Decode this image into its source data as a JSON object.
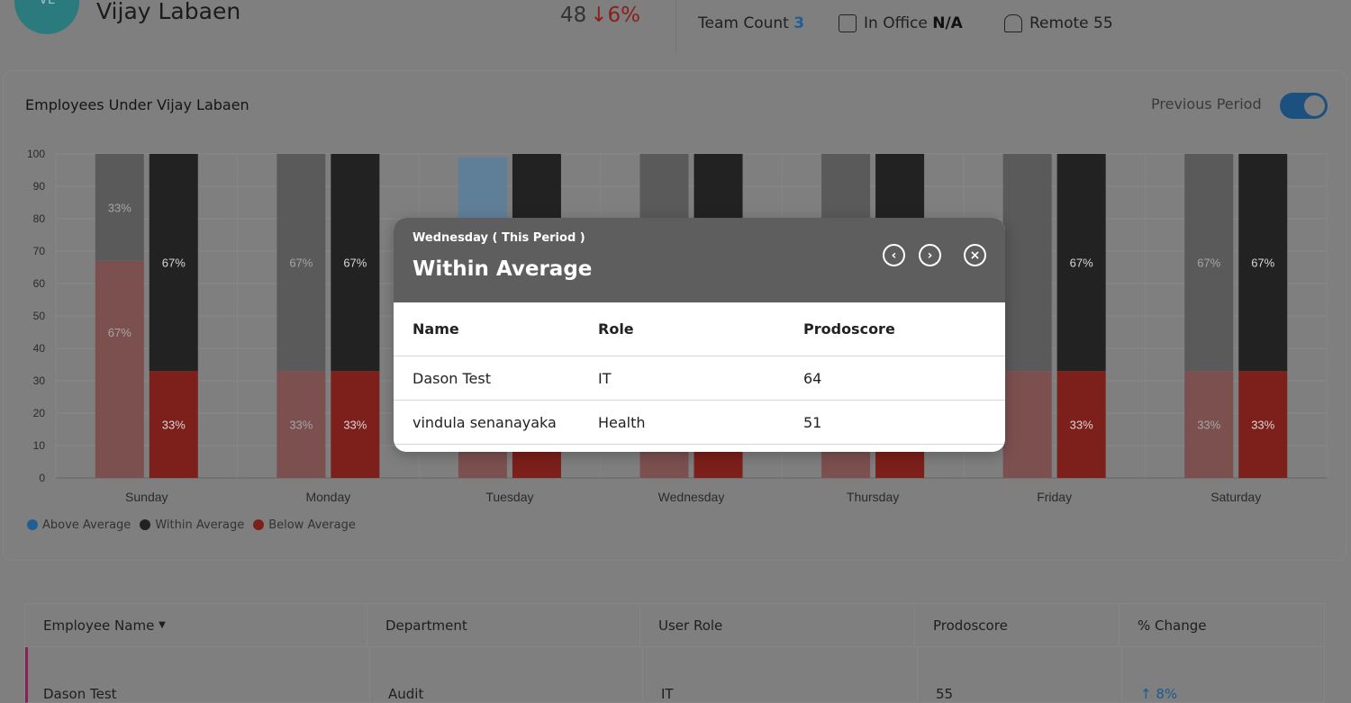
{
  "header": {
    "avatar_initials": "VL",
    "name": "Vijay Labaen",
    "score": "48",
    "score_change": "↓6%",
    "team_count_label": "Team Count",
    "team_count": "3",
    "in_office_label": "In Office",
    "in_office": "N/A",
    "remote_label": "Remote",
    "remote": "55"
  },
  "chart_card": {
    "title": "Employees Under Vijay Labaen",
    "toggle_label": "Previous Period",
    "toggle_on": true
  },
  "chart_data": {
    "type": "bar",
    "stacked": true,
    "categories": [
      "Sunday",
      "Monday",
      "Tuesday",
      "Wednesday",
      "Thursday",
      "Friday",
      "Saturday"
    ],
    "ylim": [
      0,
      100
    ],
    "yticks": [
      0,
      10,
      20,
      30,
      40,
      50,
      60,
      70,
      80,
      90,
      100
    ],
    "grid": true,
    "legend_position": "bottom-left",
    "colors": {
      "above": "#1f5f96",
      "within": "#222222",
      "below": "#7d1f1a"
    },
    "legend": [
      "Above Average",
      "Within Average",
      "Below Average"
    ],
    "previous_period": {
      "below": [
        67,
        33,
        33,
        33,
        33,
        33,
        33
      ],
      "within": [
        33,
        67,
        33,
        67,
        67,
        67,
        67
      ],
      "above": [
        0,
        0,
        33,
        0,
        0,
        0,
        0
      ]
    },
    "this_period": {
      "below": [
        33,
        33,
        33,
        33,
        33,
        33,
        33
      ],
      "within": [
        67,
        67,
        67,
        67,
        67,
        67,
        67
      ],
      "above": [
        0,
        0,
        0,
        0,
        0,
        0,
        0
      ]
    }
  },
  "table": {
    "headers": [
      "Employee Name",
      "Department",
      "User Role",
      "Prodoscore",
      "% Change"
    ],
    "rows": [
      {
        "name": "Dason Test",
        "department": "Audit",
        "role": "IT",
        "prodoscore": "55",
        "change": "↑ 8%"
      }
    ]
  },
  "popup": {
    "subtitle": "Wednesday ( This Period )",
    "title": "Within Average",
    "headers": [
      "Name",
      "Role",
      "Prodoscore"
    ],
    "rows": [
      {
        "name": "Dason Test",
        "role": "IT",
        "prodoscore": "64"
      },
      {
        "name": "vindula senanayaka",
        "role": "Health",
        "prodoscore": "51"
      }
    ]
  }
}
